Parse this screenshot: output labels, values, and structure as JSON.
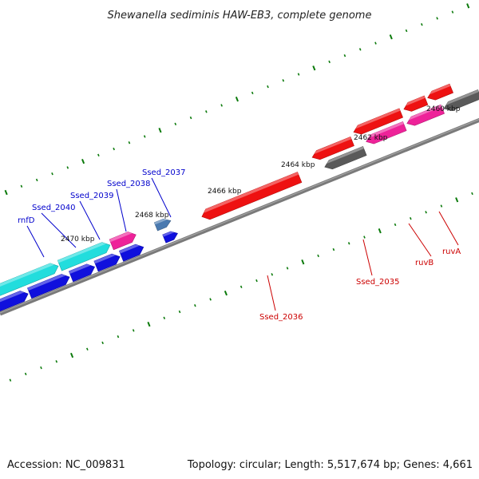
{
  "title": "Shewanella sediminis HAW-EB3, complete genome",
  "accession": "Accession: NC_009831",
  "summary": "Topology: circular; Length: 5,517,674 bp; Genes: 4,661",
  "colors": {
    "backbone": "#7a7a7a",
    "tick": "#0b7a0b",
    "plus_label": "#0000cc",
    "minus_label": "#cc0000",
    "red": "#ee1111",
    "blue": "#1010dd",
    "cyan": "#22dddd",
    "magenta": "#ee2299",
    "gray": "#5a5a5a",
    "steel": "#4a7ab0"
  },
  "coordinate_labels": [
    "2460 kbp",
    "2462 kbp",
    "2464 kbp",
    "2466 kbp",
    "2468 kbp",
    "2470 kbp"
  ],
  "gene_labels": [
    {
      "text": "rnfD",
      "strand": "plus"
    },
    {
      "text": "Ssed_2040",
      "strand": "plus"
    },
    {
      "text": "Ssed_2039",
      "strand": "plus"
    },
    {
      "text": "Ssed_2038",
      "strand": "plus"
    },
    {
      "text": "Ssed_2037",
      "strand": "plus"
    },
    {
      "text": "Ssed_2036",
      "strand": "minus"
    },
    {
      "text": "Ssed_2035",
      "strand": "minus"
    },
    {
      "text": "ruvB",
      "strand": "minus"
    },
    {
      "text": "ruvA",
      "strand": "minus"
    }
  ]
}
